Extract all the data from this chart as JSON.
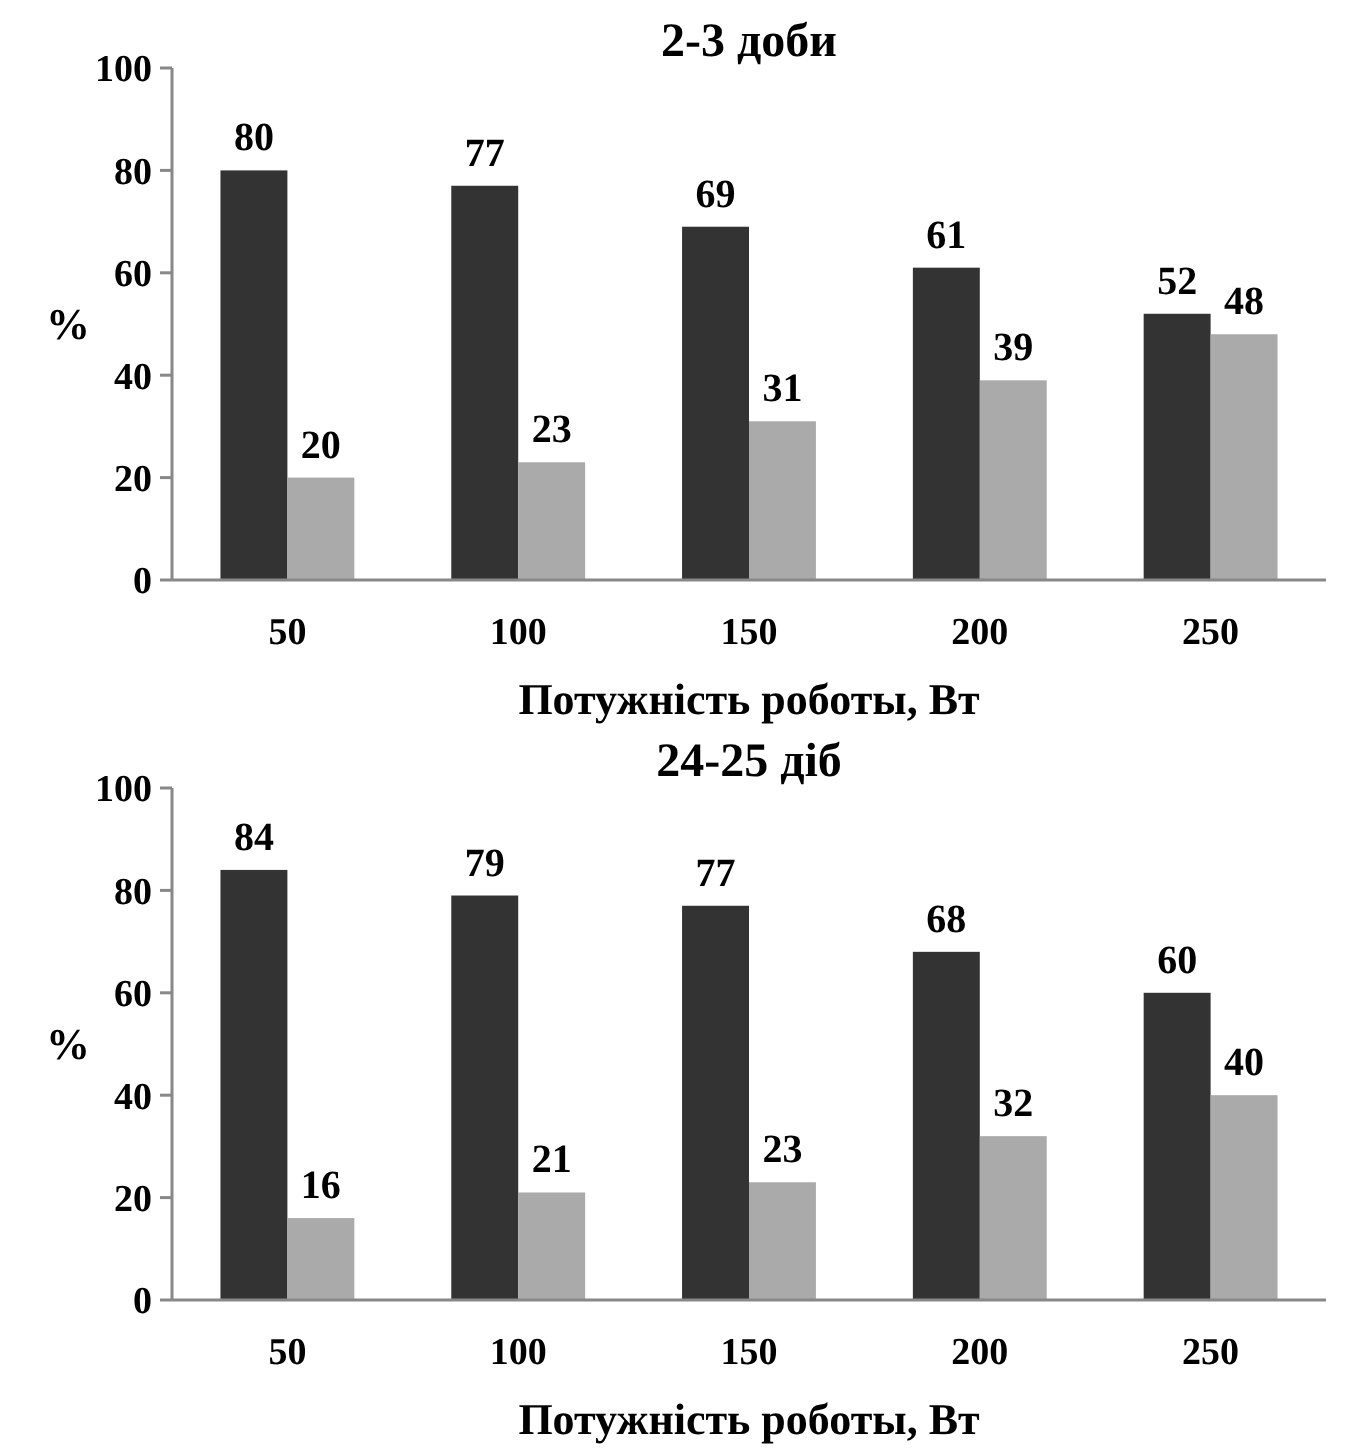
{
  "chart_data": [
    {
      "type": "bar",
      "title": "2-3 доби",
      "xlabel": "Потужність роботы, Вт",
      "ylabel": "%",
      "categories": [
        "50",
        "100",
        "150",
        "200",
        "250"
      ],
      "series": [
        {
          "color": "#333333",
          "values": [
            80,
            77,
            69,
            61,
            52
          ]
        },
        {
          "color": "#aaaaaa",
          "values": [
            20,
            23,
            31,
            39,
            48
          ]
        }
      ],
      "ylim": [
        0,
        100
      ],
      "yticks": [
        0,
        20,
        40,
        60,
        80,
        100
      ],
      "data_labels": true
    },
    {
      "type": "bar",
      "title": "24-25 діб",
      "xlabel": "Потужність роботы, Вт",
      "ylabel": "%",
      "categories": [
        "50",
        "100",
        "150",
        "200",
        "250"
      ],
      "series": [
        {
          "color": "#333333",
          "values": [
            84,
            79,
            77,
            68,
            60
          ]
        },
        {
          "color": "#aaaaaa",
          "values": [
            16,
            21,
            23,
            32,
            40
          ]
        }
      ],
      "ylim": [
        0,
        100
      ],
      "yticks": [
        0,
        20,
        40,
        60,
        80,
        100
      ],
      "data_labels": true
    }
  ]
}
